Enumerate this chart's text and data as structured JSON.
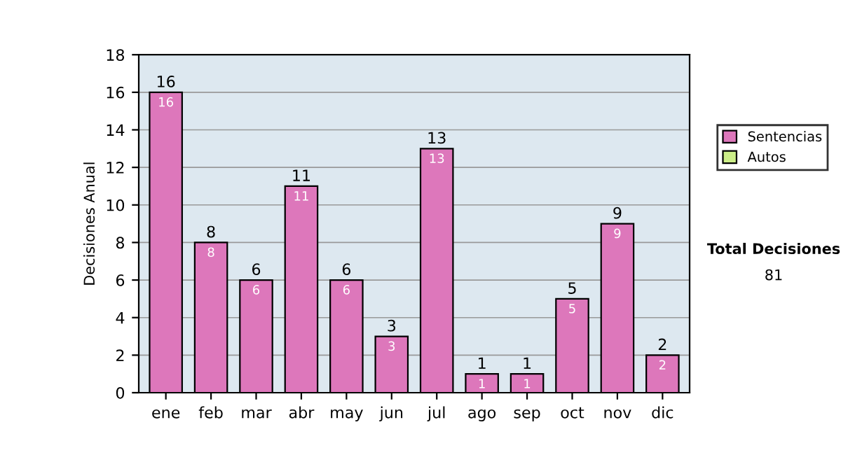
{
  "chart_data": {
    "type": "bar",
    "ylabel": "Decisiones Anual",
    "categories": [
      "ene",
      "feb",
      "mar",
      "abr",
      "may",
      "jun",
      "jul",
      "ago",
      "sep",
      "oct",
      "nov",
      "dic"
    ],
    "series": [
      {
        "name": "Sentencias",
        "color": "#dd77bb",
        "values": [
          16,
          8,
          6,
          11,
          6,
          3,
          13,
          1,
          1,
          5,
          9,
          2
        ],
        "value_labels": [
          "16",
          "8",
          "6",
          "11",
          "6",
          "3",
          "13",
          "1",
          "1",
          "5",
          "9",
          "2"
        ]
      },
      {
        "name": "Autos",
        "color": "#ccee88",
        "values": [
          null,
          null,
          null,
          null,
          null,
          null,
          null,
          null,
          null,
          null,
          null,
          null
        ]
      }
    ],
    "stacked": true,
    "totals": [
      "16",
      "8",
      "6",
      "11",
      "6",
      "3",
      "13",
      "1",
      "1",
      "5",
      "9",
      "2"
    ],
    "ylim": [
      0,
      18
    ],
    "yticks": [
      0,
      2,
      4,
      6,
      8,
      10,
      12,
      14,
      16,
      18
    ],
    "grid": "y",
    "legend": "right",
    "annotations": [
      "Total Decisiones",
      "81"
    ]
  }
}
